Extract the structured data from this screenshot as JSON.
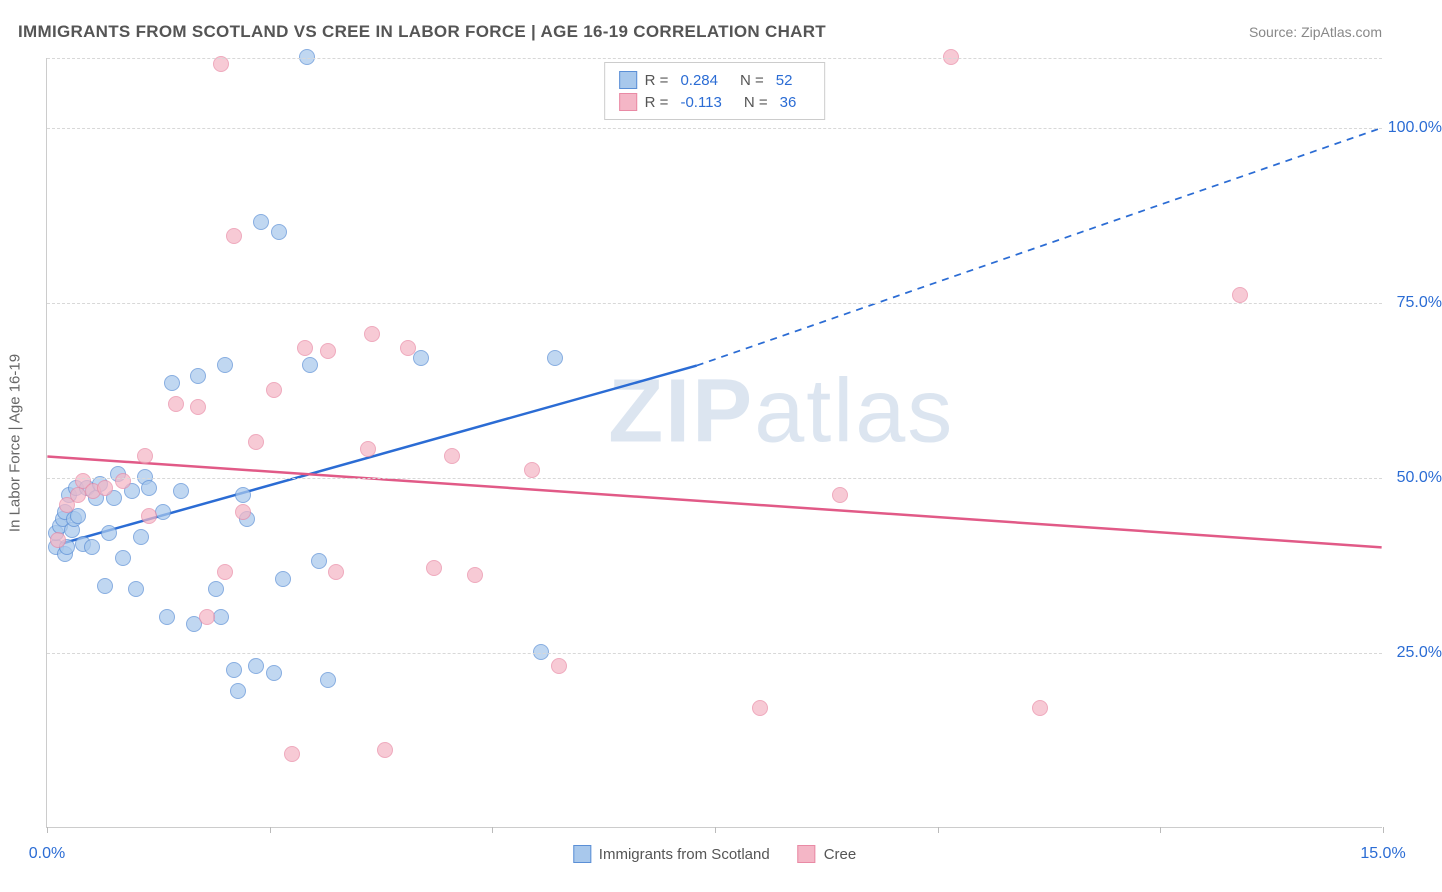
{
  "title": "IMMIGRANTS FROM SCOTLAND VS CREE IN LABOR FORCE | AGE 16-19 CORRELATION CHART",
  "source": "Source: ZipAtlas.com",
  "ylabel": "In Labor Force | Age 16-19",
  "watermark_a": "ZIP",
  "watermark_b": "atlas",
  "chart": {
    "type": "scatter",
    "xlim": [
      0,
      15
    ],
    "ylim": [
      0,
      110
    ],
    "x_ticks": [
      0,
      2.5,
      5,
      7.5,
      10,
      12.5,
      15
    ],
    "x_tick_labels": {
      "0": "0.0%",
      "15": "15.0%"
    },
    "y_gridlines": [
      25,
      50,
      75,
      100,
      110
    ],
    "y_tick_labels": {
      "25": "25.0%",
      "50": "50.0%",
      "75": "75.0%",
      "100": "100.0%"
    },
    "background_color": "#ffffff",
    "grid_color": "#d8d8d8",
    "axis_color": "#cccccc",
    "marker_radius": 8,
    "marker_opacity": 0.72,
    "marker_border_opacity": 0.95
  },
  "series": [
    {
      "name": "Immigrants from Scotland",
      "legend_label": "Immigrants from Scotland",
      "fill_color": "#a8c8ec",
      "border_color": "#5b8fd6",
      "trend_color": "#2b6cd4",
      "trend_width": 2.5,
      "R": "0.284",
      "N": "52",
      "trend": {
        "x1": 0.15,
        "y1": 40.5,
        "x2": 7.3,
        "y2": 66.0,
        "x2_ext": 15.0,
        "y2_ext": 100.0
      },
      "points": [
        [
          0.1,
          40
        ],
        [
          0.1,
          42
        ],
        [
          0.15,
          43
        ],
        [
          0.18,
          44
        ],
        [
          0.2,
          45
        ],
        [
          0.2,
          39
        ],
        [
          0.22,
          40
        ],
        [
          0.25,
          47.5
        ],
        [
          0.28,
          42.5
        ],
        [
          0.3,
          44
        ],
        [
          0.32,
          48.5
        ],
        [
          0.35,
          44.5
        ],
        [
          0.4,
          40.5
        ],
        [
          0.45,
          48.5
        ],
        [
          0.5,
          40
        ],
        [
          0.55,
          47
        ],
        [
          0.6,
          49
        ],
        [
          0.65,
          34.5
        ],
        [
          0.7,
          42
        ],
        [
          0.75,
          47
        ],
        [
          0.8,
          50.5
        ],
        [
          0.85,
          38.5
        ],
        [
          0.95,
          48
        ],
        [
          1.0,
          34
        ],
        [
          1.05,
          41.5
        ],
        [
          1.1,
          50
        ],
        [
          1.15,
          48.5
        ],
        [
          1.3,
          45
        ],
        [
          1.35,
          30
        ],
        [
          1.4,
          63.5
        ],
        [
          1.5,
          48
        ],
        [
          1.65,
          29
        ],
        [
          1.7,
          64.5
        ],
        [
          1.9,
          34
        ],
        [
          1.95,
          30
        ],
        [
          2.0,
          66
        ],
        [
          2.1,
          22.5
        ],
        [
          2.15,
          19.5
        ],
        [
          2.2,
          47.5
        ],
        [
          2.25,
          44
        ],
        [
          2.35,
          23
        ],
        [
          2.4,
          86.5
        ],
        [
          2.55,
          22
        ],
        [
          2.6,
          85
        ],
        [
          2.65,
          35.5
        ],
        [
          2.92,
          110
        ],
        [
          2.95,
          66
        ],
        [
          3.05,
          38
        ],
        [
          3.15,
          21
        ],
        [
          4.2,
          67
        ],
        [
          5.7,
          67
        ],
        [
          5.55,
          25
        ]
      ]
    },
    {
      "name": "Cree",
      "legend_label": "Cree",
      "fill_color": "#f4b6c6",
      "border_color": "#e98aa5",
      "trend_color": "#e15a87",
      "trend_width": 2.5,
      "R": "-0.113",
      "N": "36",
      "trend": {
        "x1": 0.0,
        "y1": 53.0,
        "x2": 15.0,
        "y2": 40.0
      },
      "points": [
        [
          0.12,
          41
        ],
        [
          0.22,
          46
        ],
        [
          0.35,
          47.5
        ],
        [
          0.4,
          49.5
        ],
        [
          0.52,
          48
        ],
        [
          0.65,
          48.5
        ],
        [
          0.85,
          49.5
        ],
        [
          1.1,
          53
        ],
        [
          1.15,
          44.5
        ],
        [
          1.45,
          60.5
        ],
        [
          1.7,
          60
        ],
        [
          1.8,
          30
        ],
        [
          1.95,
          109
        ],
        [
          2.0,
          36.5
        ],
        [
          2.1,
          84.5
        ],
        [
          2.2,
          45
        ],
        [
          2.35,
          55
        ],
        [
          2.55,
          62.5
        ],
        [
          2.75,
          10.5
        ],
        [
          2.9,
          68.5
        ],
        [
          3.15,
          68
        ],
        [
          3.25,
          36.5
        ],
        [
          3.6,
          54
        ],
        [
          3.65,
          70.5
        ],
        [
          3.8,
          11
        ],
        [
          4.05,
          68.5
        ],
        [
          4.35,
          37
        ],
        [
          4.55,
          53
        ],
        [
          4.8,
          36
        ],
        [
          5.45,
          51
        ],
        [
          5.75,
          23
        ],
        [
          8.0,
          17
        ],
        [
          8.9,
          47.5
        ],
        [
          10.15,
          110
        ],
        [
          11.15,
          17
        ],
        [
          13.4,
          76
        ]
      ]
    }
  ],
  "legend_top": {
    "r_label": "R =",
    "n_label": "N ="
  }
}
